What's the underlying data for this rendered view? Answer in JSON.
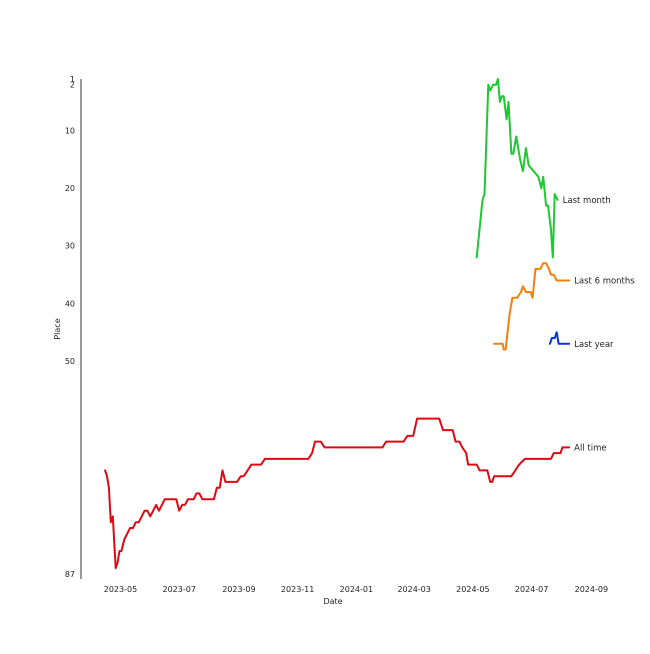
{
  "chart_data": {
    "type": "line",
    "title": "",
    "xlabel": "Date",
    "ylabel": "Place",
    "y_inverted": true,
    "ylim": [
      1,
      87
    ],
    "xlim": [
      "2023-03-21",
      "2024-09-10"
    ],
    "grid": false,
    "x_ticks": [
      "2023-05",
      "2023-07",
      "2023-09",
      "2023-11",
      "2024-01",
      "2024-03",
      "2024-05",
      "2024-07",
      "2024-09"
    ],
    "y_ticks": [
      1,
      2,
      10,
      20,
      30,
      40,
      50,
      87
    ],
    "series": [
      {
        "name": "All time",
        "color": "#dd0a14",
        "points": [
          [
            "2023-04-15",
            69
          ],
          [
            "2023-04-17",
            70
          ],
          [
            "2023-04-19",
            72
          ],
          [
            "2023-04-21",
            78
          ],
          [
            "2023-04-23",
            77
          ],
          [
            "2023-04-26",
            86
          ],
          [
            "2023-04-28",
            85
          ],
          [
            "2023-04-30",
            83
          ],
          [
            "2023-05-02",
            83
          ],
          [
            "2023-05-05",
            81
          ],
          [
            "2023-05-08",
            80
          ],
          [
            "2023-05-11",
            79
          ],
          [
            "2023-05-14",
            79
          ],
          [
            "2023-05-17",
            78
          ],
          [
            "2023-05-20",
            78
          ],
          [
            "2023-05-23",
            77
          ],
          [
            "2023-05-26",
            76
          ],
          [
            "2023-05-29",
            76
          ],
          [
            "2023-06-01",
            77
          ],
          [
            "2023-06-04",
            76
          ],
          [
            "2023-06-07",
            75
          ],
          [
            "2023-06-10",
            76
          ],
          [
            "2023-06-13",
            75
          ],
          [
            "2023-06-16",
            74
          ],
          [
            "2023-06-22",
            74
          ],
          [
            "2023-06-28",
            74
          ],
          [
            "2023-07-01",
            76
          ],
          [
            "2023-07-04",
            75
          ],
          [
            "2023-07-07",
            75
          ],
          [
            "2023-07-10",
            74
          ],
          [
            "2023-07-16",
            74
          ],
          [
            "2023-07-19",
            73
          ],
          [
            "2023-07-22",
            73
          ],
          [
            "2023-07-25",
            74
          ],
          [
            "2023-07-31",
            74
          ],
          [
            "2023-08-06",
            74
          ],
          [
            "2023-08-09",
            72
          ],
          [
            "2023-08-12",
            72
          ],
          [
            "2023-08-15",
            69
          ],
          [
            "2023-08-18",
            71
          ],
          [
            "2023-08-24",
            71
          ],
          [
            "2023-08-30",
            71
          ],
          [
            "2023-09-03",
            70
          ],
          [
            "2023-09-06",
            70
          ],
          [
            "2023-09-10",
            69
          ],
          [
            "2023-09-14",
            68
          ],
          [
            "2023-09-20",
            68
          ],
          [
            "2023-09-24",
            68
          ],
          [
            "2023-09-28",
            67
          ],
          [
            "2023-10-10",
            67
          ],
          [
            "2023-10-20",
            67
          ],
          [
            "2023-11-02",
            67
          ],
          [
            "2023-11-12",
            67
          ],
          [
            "2023-11-16",
            66
          ],
          [
            "2023-11-19",
            64
          ],
          [
            "2023-11-25",
            64
          ],
          [
            "2023-11-29",
            65
          ],
          [
            "2023-12-10",
            65
          ],
          [
            "2023-12-25",
            65
          ],
          [
            "2024-01-10",
            65
          ],
          [
            "2024-01-28",
            65
          ],
          [
            "2024-02-01",
            64
          ],
          [
            "2024-02-10",
            64
          ],
          [
            "2024-02-19",
            64
          ],
          [
            "2024-02-23",
            63
          ],
          [
            "2024-02-29",
            63
          ],
          [
            "2024-03-04",
            60
          ],
          [
            "2024-03-16",
            60
          ],
          [
            "2024-03-27",
            60
          ],
          [
            "2024-03-31",
            62
          ],
          [
            "2024-04-10",
            62
          ],
          [
            "2024-04-13",
            64
          ],
          [
            "2024-04-17",
            64
          ],
          [
            "2024-04-20",
            65
          ],
          [
            "2024-04-24",
            66
          ],
          [
            "2024-04-26",
            68
          ],
          [
            "2024-05-05",
            68
          ],
          [
            "2024-05-08",
            69
          ],
          [
            "2024-05-16",
            69
          ],
          [
            "2024-05-19",
            71
          ],
          [
            "2024-05-21",
            71
          ],
          [
            "2024-05-23",
            70
          ],
          [
            "2024-05-29",
            70
          ],
          [
            "2024-06-03",
            70
          ],
          [
            "2024-06-10",
            70
          ],
          [
            "2024-06-14",
            69
          ],
          [
            "2024-06-18",
            68
          ],
          [
            "2024-06-24",
            67
          ],
          [
            "2024-07-05",
            67
          ],
          [
            "2024-07-10",
            67
          ],
          [
            "2024-07-17",
            67
          ],
          [
            "2024-07-21",
            67
          ],
          [
            "2024-07-24",
            66
          ],
          [
            "2024-07-31",
            66
          ],
          [
            "2024-08-02",
            65
          ],
          [
            "2024-08-09",
            65
          ]
        ]
      },
      {
        "name": "Last year",
        "color": "#0a36dc",
        "points": [
          [
            "2024-07-20",
            47
          ],
          [
            "2024-07-22",
            46
          ],
          [
            "2024-07-25",
            46
          ],
          [
            "2024-07-27",
            45
          ],
          [
            "2024-07-29",
            47
          ],
          [
            "2024-08-02",
            47
          ],
          [
            "2024-08-09",
            47
          ]
        ]
      },
      {
        "name": "Last 6 months",
        "color": "#f57f0a",
        "points": [
          [
            "2024-05-23",
            47
          ],
          [
            "2024-05-28",
            47
          ],
          [
            "2024-06-01",
            47
          ],
          [
            "2024-06-02",
            48
          ],
          [
            "2024-06-04",
            48
          ],
          [
            "2024-06-08",
            42
          ],
          [
            "2024-06-11",
            39
          ],
          [
            "2024-06-16",
            39
          ],
          [
            "2024-06-20",
            38
          ],
          [
            "2024-06-22",
            37
          ],
          [
            "2024-06-25",
            38
          ],
          [
            "2024-06-30",
            38
          ],
          [
            "2024-07-02",
            39
          ],
          [
            "2024-07-05",
            34
          ],
          [
            "2024-07-10",
            34
          ],
          [
            "2024-07-13",
            33
          ],
          [
            "2024-07-16",
            33
          ],
          [
            "2024-07-19",
            34
          ],
          [
            "2024-07-21",
            35
          ],
          [
            "2024-07-24",
            35
          ],
          [
            "2024-07-27",
            36
          ],
          [
            "2024-08-02",
            36
          ],
          [
            "2024-08-09",
            36
          ]
        ]
      },
      {
        "name": "Last month",
        "color": "#1ec832",
        "points": [
          [
            "2024-05-05",
            32
          ],
          [
            "2024-05-08",
            27
          ],
          [
            "2024-05-11",
            22
          ],
          [
            "2024-05-13",
            21
          ],
          [
            "2024-05-17",
            2
          ],
          [
            "2024-05-19",
            3
          ],
          [
            "2024-05-22",
            2
          ],
          [
            "2024-05-25",
            2
          ],
          [
            "2024-05-27",
            1
          ],
          [
            "2024-05-29",
            5
          ],
          [
            "2024-05-31",
            4
          ],
          [
            "2024-06-02",
            4
          ],
          [
            "2024-06-05",
            8
          ],
          [
            "2024-06-07",
            5
          ],
          [
            "2024-06-10",
            14
          ],
          [
            "2024-06-12",
            14
          ],
          [
            "2024-06-15",
            11
          ],
          [
            "2024-06-17",
            13
          ],
          [
            "2024-06-19",
            15
          ],
          [
            "2024-06-22",
            17
          ],
          [
            "2024-06-25",
            13
          ],
          [
            "2024-06-28",
            16
          ],
          [
            "2024-07-03",
            17
          ],
          [
            "2024-07-08",
            18
          ],
          [
            "2024-07-11",
            20
          ],
          [
            "2024-07-13",
            18
          ],
          [
            "2024-07-16",
            23
          ],
          [
            "2024-07-18",
            23
          ],
          [
            "2024-07-21",
            27
          ],
          [
            "2024-07-23",
            32
          ],
          [
            "2024-07-25",
            21
          ],
          [
            "2024-07-28",
            22
          ]
        ]
      }
    ]
  }
}
